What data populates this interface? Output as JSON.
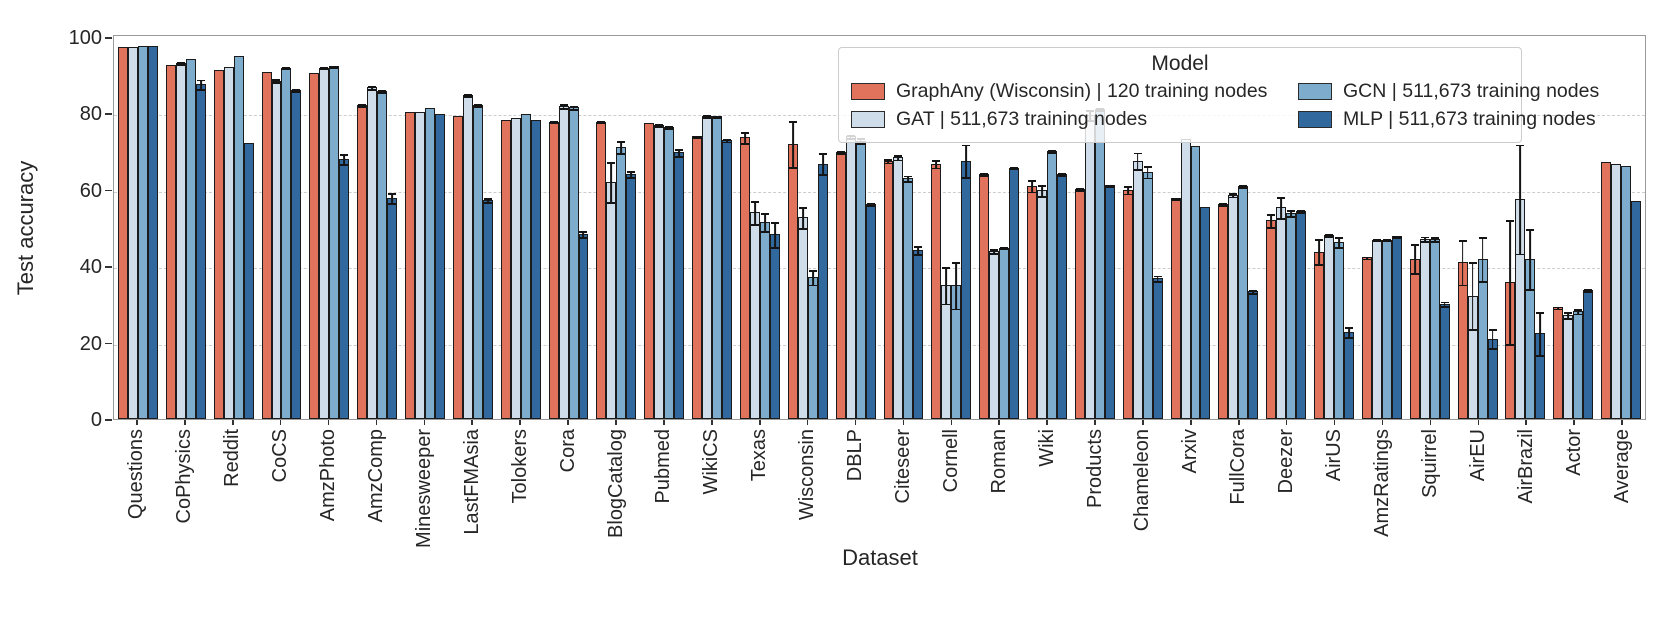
{
  "figure": {
    "y_axis_label": "Test accuracy",
    "x_axis_label": "Dataset",
    "yticks": [
      0,
      20,
      40,
      60,
      80,
      100
    ],
    "grid_values": [
      20,
      40,
      60,
      80
    ],
    "colors": {
      "graphany": "#e1725c",
      "gat": "#cfdce9",
      "gcn": "#7eaccd",
      "mlp": "#31689e",
      "bar_edge": "#1b1b1b",
      "gridline": "#cdcdcd",
      "spine": "#9a9a9a",
      "text": "#262626"
    }
  },
  "legend": {
    "title": "Model",
    "items": [
      {
        "label": "GraphAny (Wisconsin) | 120 training nodes",
        "color": "#e1725c"
      },
      {
        "label": "GAT | 511,673 training nodes",
        "color": "#cfdce9"
      },
      {
        "label": "GCN | 511,673 training nodes",
        "color": "#7eaccd"
      },
      {
        "label": "MLP | 511,673 training nodes",
        "color": "#31689e"
      }
    ]
  },
  "chart_data": {
    "type": "bar",
    "title": "",
    "xlabel": "Dataset",
    "ylabel": "Test accuracy",
    "ylim": [
      0,
      100
    ],
    "grid": "horizontal dashed at 20/40/60/80",
    "legend_position": "upper right inside, 2 columns, title Model",
    "categories": [
      "Questions",
      "CoPhysics",
      "Reddit",
      "CoCS",
      "AmzPhoto",
      "AmzComp",
      "Minesweeper",
      "LastFMAsia",
      "Tolokers",
      "Cora",
      "BlogCatalog",
      "Pubmed",
      "WikiCS",
      "Texas",
      "Wisconsin",
      "DBLP",
      "Citeseer",
      "Cornell",
      "Roman",
      "Wiki",
      "Products",
      "Chameleon",
      "Arxiv",
      "FullCora",
      "Deezer",
      "AirUS",
      "AmzRatings",
      "Squirrel",
      "AirEU",
      "AirBrazil",
      "Actor",
      "Average"
    ],
    "series": [
      {
        "name": "GraphAny (Wisconsin) | 120 training nodes",
        "color": "#e1725c",
        "values": [
          97.5,
          92.8,
          91.4,
          90.9,
          90.7,
          82.2,
          80.3,
          79.4,
          78.3,
          77.8,
          77.8,
          77.4,
          74.0,
          73.7,
          72.0,
          70.0,
          67.6,
          66.8,
          64.2,
          61.1,
          60.2,
          60.0,
          57.8,
          56.2,
          52.0,
          43.8,
          42.3,
          42.0,
          41.0,
          35.8,
          29.2,
          67.2
        ],
        "errors": [
          0.2,
          0.3,
          0.3,
          0.3,
          0.3,
          0.4,
          0.2,
          0.3,
          0.3,
          0.4,
          0.4,
          0.3,
          0.4,
          1.7,
          6.3,
          0.5,
          0.7,
          1.2,
          0.5,
          1.8,
          0.5,
          1.2,
          0.4,
          0.5,
          2.0,
          3.5,
          0.5,
          4.0,
          6.0,
          16.5,
          0.5,
          0.2
        ]
      },
      {
        "name": "GAT | 511,673 training nodes",
        "color": "#cfdce9",
        "values": [
          97.5,
          93.3,
          92.1,
          88.6,
          92.0,
          86.8,
          80.4,
          84.8,
          78.9,
          81.9,
          62.0,
          77.0,
          79.4,
          54.1,
          52.8,
          74.0,
          68.5,
          35.0,
          44.0,
          59.9,
          79.6,
          67.6,
          73.3,
          58.7,
          55.4,
          48.2,
          46.9,
          47.2,
          32.3,
          57.6,
          27.3,
          66.8
        ],
        "errors": [
          0.2,
          0.5,
          0.3,
          0.7,
          0.4,
          0.6,
          0.2,
          0.5,
          0.3,
          0.8,
          5.5,
          0.5,
          0.5,
          3.3,
          3.0,
          0.7,
          0.8,
          5.0,
          0.8,
          1.7,
          1.5,
          2.4,
          0.3,
          0.7,
          3.0,
          0.5,
          0.4,
          0.8,
          9.0,
          14.5,
          1.0,
          0.2
        ]
      },
      {
        "name": "GCN | 511,673 training nodes",
        "color": "#7eaccd",
        "values": [
          97.6,
          94.3,
          95.1,
          92.0,
          92.3,
          85.9,
          81.5,
          82.2,
          79.8,
          81.6,
          71.3,
          76.5,
          79.2,
          51.5,
          37.1,
          72.9,
          63.0,
          35.0,
          44.8,
          70.2,
          81.2,
          64.7,
          71.5,
          61.0,
          54.0,
          46.3,
          46.9,
          47.1,
          41.9,
          41.9,
          28.2,
          66.3
        ],
        "errors": [
          0.2,
          0.3,
          0.3,
          0.4,
          0.4,
          0.5,
          0.2,
          0.4,
          0.3,
          0.7,
          1.8,
          0.5,
          0.4,
          2.6,
          2.1,
          0.8,
          1.0,
          6.3,
          0.4,
          0.6,
          0.5,
          1.7,
          0.3,
          0.6,
          1.0,
          1.5,
          0.4,
          0.8,
          6.0,
          8.0,
          0.8,
          0.2
        ]
      },
      {
        "name": "MLP | 511,673 training nodes",
        "color": "#31689e",
        "values": [
          97.6,
          87.6,
          72.3,
          86.1,
          68.1,
          57.9,
          79.8,
          57.3,
          78.3,
          48.4,
          64.1,
          69.8,
          73.0,
          48.4,
          66.8,
          56.3,
          44.2,
          67.6,
          65.8,
          64.1,
          61.2,
          36.8,
          55.5,
          33.4,
          54.5,
          22.8,
          47.8,
          30.2,
          21.0,
          22.4,
          33.8,
          57.1
        ],
        "errors": [
          0.2,
          1.5,
          0.3,
          0.5,
          1.5,
          1.5,
          0.3,
          0.8,
          0.3,
          1.0,
          1.0,
          1.2,
          0.6,
          3.5,
          3.0,
          0.6,
          1.3,
          4.5,
          0.4,
          0.5,
          0.4,
          1.0,
          0.3,
          0.6,
          0.5,
          1.5,
          0.4,
          0.8,
          2.7,
          5.9,
          0.5,
          0.2
        ]
      }
    ]
  }
}
